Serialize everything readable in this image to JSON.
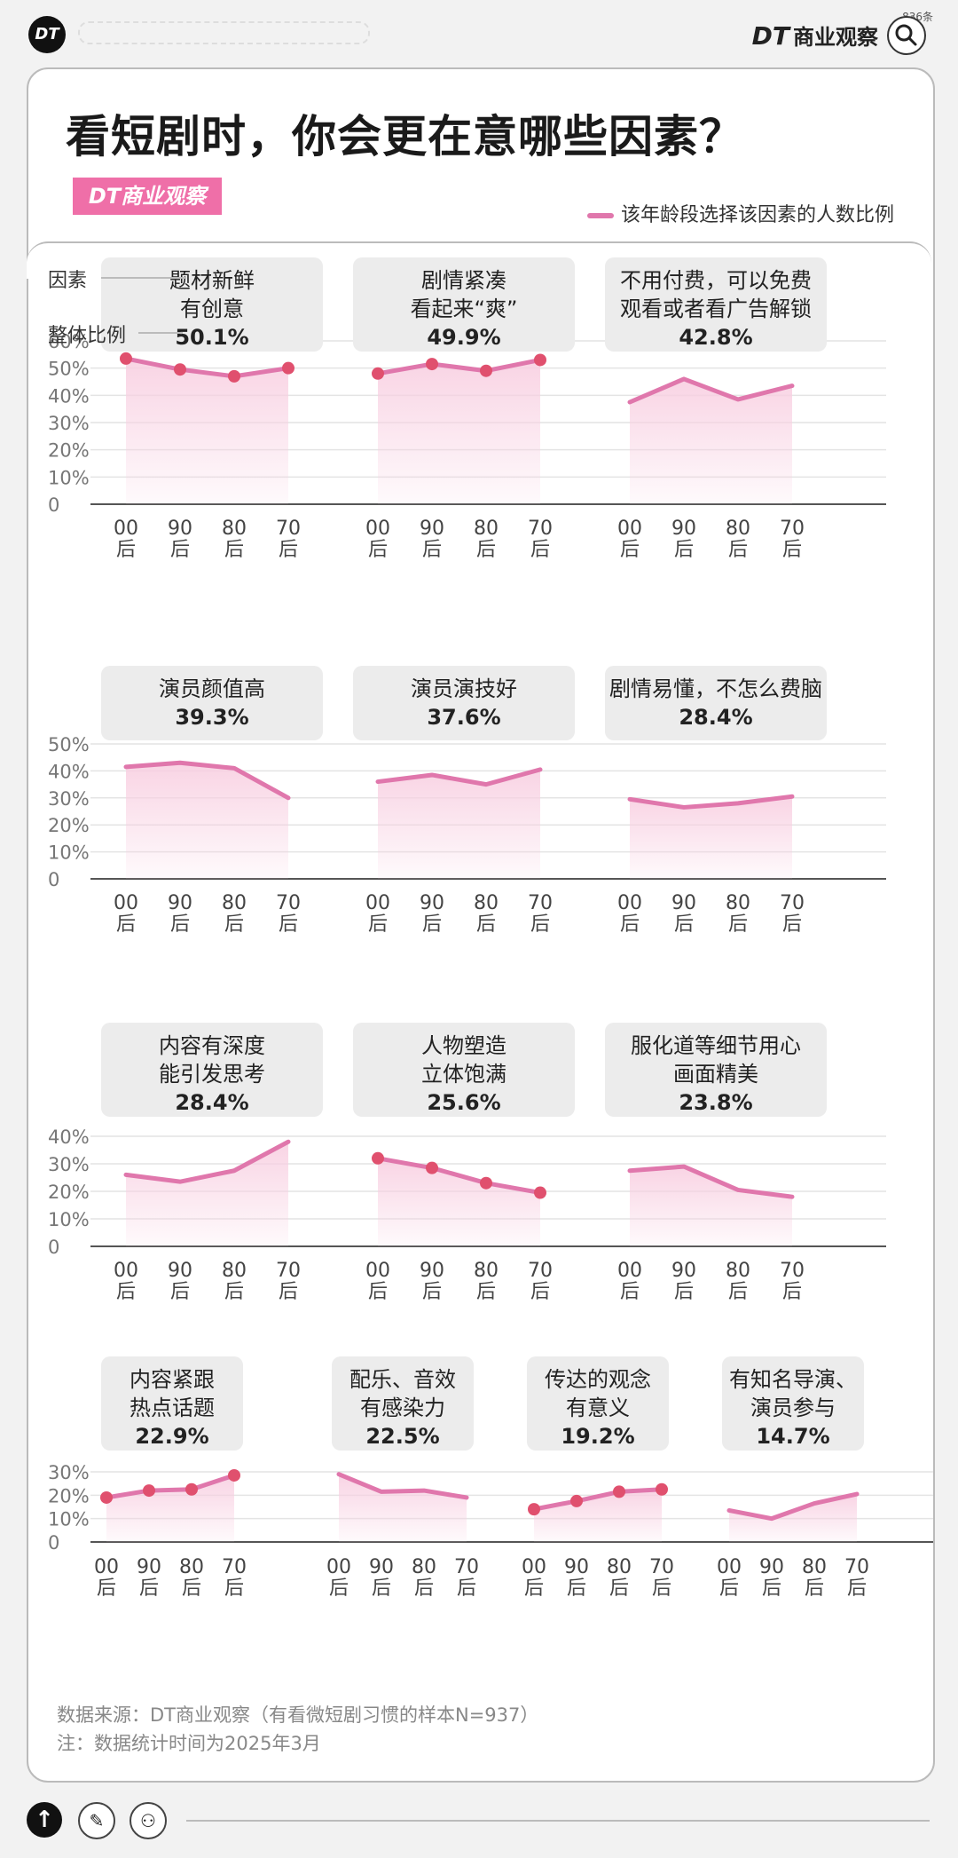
{
  "header": {
    "logo_text": "DT",
    "brand_dt": "DT",
    "brand_name": "商业观察",
    "top_note": "836条"
  },
  "card": {
    "title": "看短剧时，你会更在意哪些因素？",
    "badge": "DT商业观察",
    "legend": "该年龄段选择该因素的人数比例",
    "hint_factor": "因素",
    "hint_overall": "整体比例",
    "source": "数据来源：DT商业观察（有看微短剧习惯的样本N=937）",
    "note": "注：数据统计时间为2025年3月"
  },
  "colors": {
    "line": "#e077ac",
    "area_top": "#f8cfe1",
    "marker": "#e0506e",
    "box": "#ececec",
    "grid": "#e4e4e4",
    "badge": "#ef6fa8"
  },
  "x_labels": [
    "00后",
    "90后",
    "80后",
    "70后"
  ],
  "chart_data": [
    {
      "type": "line",
      "title": "题材新鲜有创意",
      "lines": [
        "题材新鲜",
        "有创意"
      ],
      "overall": "50.1%",
      "x": [
        "00后",
        "90后",
        "80后",
        "70后"
      ],
      "values": [
        53.5,
        49.5,
        47,
        50
      ],
      "markers": true,
      "ylim": [
        0,
        60
      ],
      "yticks": [
        "0",
        "10%",
        "20%",
        "30%",
        "40%",
        "50%",
        "60%"
      ]
    },
    {
      "type": "line",
      "title": "剧情紧凑看起来“爽”",
      "lines": [
        "剧情紧凑",
        "看起来“爽”"
      ],
      "overall": "49.9%",
      "x": [
        "00后",
        "90后",
        "80后",
        "70后"
      ],
      "values": [
        48,
        51.5,
        49,
        53
      ],
      "markers": true,
      "ylim": [
        0,
        60
      ]
    },
    {
      "type": "line",
      "title": "不用付费，可以免费观看或者看广告解锁",
      "lines": [
        "不用付费，可以免费",
        "观看或者看广告解锁"
      ],
      "overall": "42.8%",
      "x": [
        "00后",
        "90后",
        "80后",
        "70后"
      ],
      "values": [
        37.5,
        46,
        38.5,
        43.5
      ],
      "markers": false,
      "ylim": [
        0,
        60
      ]
    },
    {
      "type": "line",
      "title": "演员颜值高",
      "lines": [
        "演员颜值高"
      ],
      "overall": "39.3%",
      "x": [
        "00后",
        "90后",
        "80后",
        "70后"
      ],
      "values": [
        41.5,
        43,
        41,
        30
      ],
      "markers": false,
      "ylim": [
        0,
        50
      ],
      "yticks": [
        "0",
        "10%",
        "20%",
        "30%",
        "40%",
        "50%"
      ]
    },
    {
      "type": "line",
      "title": "演员演技好",
      "lines": [
        "演员演技好"
      ],
      "overall": "37.6%",
      "x": [
        "00后",
        "90后",
        "80后",
        "70后"
      ],
      "values": [
        36,
        38.5,
        35,
        40.5
      ],
      "markers": false,
      "ylim": [
        0,
        50
      ]
    },
    {
      "type": "line",
      "title": "剧情易懂，不怎么费脑",
      "lines": [
        "剧情易懂，不怎么费脑"
      ],
      "overall": "28.4%",
      "x": [
        "00后",
        "90后",
        "80后",
        "70后"
      ],
      "values": [
        29.5,
        26.5,
        28,
        30.5
      ],
      "markers": false,
      "ylim": [
        0,
        50
      ]
    },
    {
      "type": "line",
      "title": "内容有深度能引发思考",
      "lines": [
        "内容有深度",
        "能引发思考"
      ],
      "overall": "28.4%",
      "x": [
        "00后",
        "90后",
        "80后",
        "70后"
      ],
      "values": [
        26,
        23.5,
        27.5,
        38
      ],
      "markers": false,
      "ylim": [
        0,
        40
      ],
      "yticks": [
        "0",
        "10%",
        "20%",
        "30%",
        "40%"
      ]
    },
    {
      "type": "line",
      "title": "人物塑造立体饱满",
      "lines": [
        "人物塑造",
        "立体饱满"
      ],
      "overall": "25.6%",
      "x": [
        "00后",
        "90后",
        "80后",
        "70后"
      ],
      "values": [
        32,
        28.5,
        23,
        19.5
      ],
      "markers": true,
      "ylim": [
        0,
        40
      ]
    },
    {
      "type": "line",
      "title": "服化道等细节用心画面精美",
      "lines": [
        "服化道等细节用心",
        "画面精美"
      ],
      "overall": "23.8%",
      "x": [
        "00后",
        "90后",
        "80后",
        "70后"
      ],
      "values": [
        27.5,
        29,
        20.5,
        18
      ],
      "markers": false,
      "ylim": [
        0,
        40
      ]
    },
    {
      "type": "line",
      "title": "内容紧跟热点话题",
      "lines": [
        "内容紧跟",
        "热点话题"
      ],
      "overall": "22.9%",
      "x": [
        "00后",
        "90后",
        "80后",
        "70后"
      ],
      "values": [
        19,
        22,
        22.5,
        28.5
      ],
      "markers": true,
      "ylim": [
        0,
        30
      ],
      "yticks": [
        "0",
        "10%",
        "20%",
        "30%"
      ]
    },
    {
      "type": "line",
      "title": "配乐、音效有感染力",
      "lines": [
        "配乐、音效",
        "有感染力"
      ],
      "overall": "22.5%",
      "x": [
        "00后",
        "90后",
        "80后",
        "70后"
      ],
      "values": [
        29,
        21.5,
        22,
        19
      ],
      "markers": false,
      "ylim": [
        0,
        30
      ]
    },
    {
      "type": "line",
      "title": "传达的观念有意义",
      "lines": [
        "传达的观念",
        "有意义"
      ],
      "overall": "19.2%",
      "x": [
        "00后",
        "90后",
        "80后",
        "70后"
      ],
      "values": [
        14,
        17.5,
        21.5,
        22.5
      ],
      "markers": true,
      "ylim": [
        0,
        30
      ]
    },
    {
      "type": "line",
      "title": "有知名导演、演员参与",
      "lines": [
        "有知名导演、",
        "演员参与"
      ],
      "overall": "14.7%",
      "x": [
        "00后",
        "90后",
        "80后",
        "70后"
      ],
      "values": [
        13.5,
        10,
        16.5,
        20.5
      ],
      "markers": false,
      "ylim": [
        0,
        30
      ]
    }
  ]
}
